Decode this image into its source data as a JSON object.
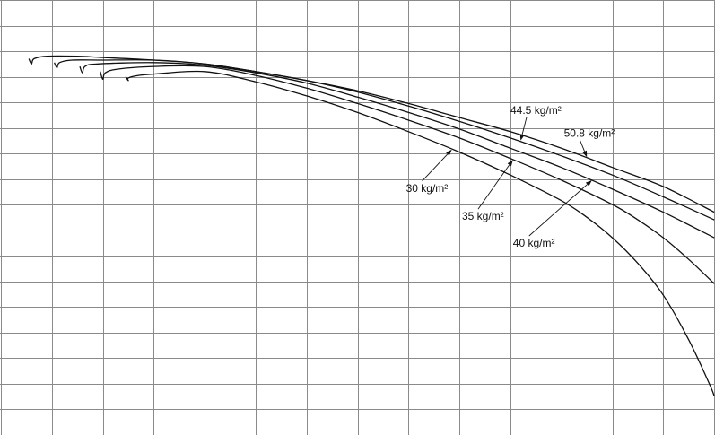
{
  "chart_data": {
    "type": "line",
    "title": "",
    "xlabel": "",
    "ylabel": "",
    "grid": true,
    "xlim": [
      0,
      14
    ],
    "ylim": [
      -17,
      0
    ],
    "grid_step": 1,
    "series": [
      {
        "name": "30 kg/m²",
        "color": "#111111",
        "points": [
          [
            2.45,
            -3.0
          ],
          [
            2.5,
            -3.15
          ],
          [
            2.5,
            -3.05
          ],
          [
            2.7,
            -2.95
          ],
          [
            3.0,
            -2.9
          ],
          [
            4.0,
            -2.8
          ],
          [
            5.0,
            -3.2
          ],
          [
            6.0,
            -3.75
          ],
          [
            7.0,
            -4.4
          ],
          [
            8.0,
            -5.15
          ],
          [
            9.0,
            -5.95
          ],
          [
            10.0,
            -6.85
          ],
          [
            11.0,
            -7.85
          ],
          [
            11.5,
            -8.5
          ],
          [
            12.0,
            -9.3
          ],
          [
            12.5,
            -10.3
          ],
          [
            13.0,
            -11.55
          ],
          [
            13.5,
            -13.3
          ],
          [
            13.9,
            -15.0
          ],
          [
            14.0,
            -15.5
          ]
        ]
      },
      {
        "name": "35 kg/m²",
        "color": "#111111",
        "points": [
          [
            1.95,
            -2.8
          ],
          [
            2.0,
            -3.1
          ],
          [
            2.05,
            -2.85
          ],
          [
            2.3,
            -2.7
          ],
          [
            3.0,
            -2.6
          ],
          [
            4.0,
            -2.6
          ],
          [
            5.0,
            -2.95
          ],
          [
            6.0,
            -3.45
          ],
          [
            7.0,
            -4.05
          ],
          [
            8.0,
            -4.7
          ],
          [
            9.0,
            -5.4
          ],
          [
            10.0,
            -6.2
          ],
          [
            11.0,
            -7.05
          ],
          [
            12.0,
            -8.0
          ],
          [
            12.5,
            -8.6
          ],
          [
            13.0,
            -9.3
          ],
          [
            13.5,
            -10.15
          ],
          [
            14.0,
            -11.1
          ]
        ]
      },
      {
        "name": "40 kg/m²",
        "color": "#111111",
        "points": [
          [
            1.55,
            -2.6
          ],
          [
            1.6,
            -2.85
          ],
          [
            1.65,
            -2.6
          ],
          [
            1.9,
            -2.5
          ],
          [
            3.0,
            -2.45
          ],
          [
            4.0,
            -2.55
          ],
          [
            5.0,
            -2.85
          ],
          [
            6.0,
            -3.25
          ],
          [
            7.0,
            -3.8
          ],
          [
            8.0,
            -4.4
          ],
          [
            9.0,
            -5.05
          ],
          [
            10.0,
            -5.8
          ],
          [
            11.0,
            -6.55
          ],
          [
            12.0,
            -7.4
          ],
          [
            13.0,
            -8.3
          ],
          [
            14.0,
            -9.3
          ]
        ]
      },
      {
        "name": "44.5 kg/m²",
        "color": "#111111",
        "points": [
          [
            1.05,
            -2.45
          ],
          [
            1.1,
            -2.65
          ],
          [
            1.15,
            -2.45
          ],
          [
            1.4,
            -2.35
          ],
          [
            2.0,
            -2.35
          ],
          [
            3.0,
            -2.35
          ],
          [
            4.0,
            -2.5
          ],
          [
            5.0,
            -2.8
          ],
          [
            6.0,
            -3.15
          ],
          [
            7.0,
            -3.6
          ],
          [
            8.0,
            -4.15
          ],
          [
            9.0,
            -4.75
          ],
          [
            10.0,
            -5.4
          ],
          [
            11.0,
            -6.1
          ],
          [
            12.0,
            -6.85
          ],
          [
            13.0,
            -7.7
          ],
          [
            14.0,
            -8.6
          ]
        ]
      },
      {
        "name": "50.8 kg/m²",
        "color": "#111111",
        "points": [
          [
            0.55,
            -2.3
          ],
          [
            0.6,
            -2.5
          ],
          [
            0.65,
            -2.3
          ],
          [
            0.9,
            -2.2
          ],
          [
            1.5,
            -2.2
          ],
          [
            2.0,
            -2.25
          ],
          [
            3.0,
            -2.35
          ],
          [
            4.0,
            -2.5
          ],
          [
            5.0,
            -2.8
          ],
          [
            6.0,
            -3.15
          ],
          [
            7.0,
            -3.55
          ],
          [
            8.0,
            -4.05
          ],
          [
            9.0,
            -4.6
          ],
          [
            10.0,
            -5.15
          ],
          [
            11.0,
            -5.8
          ],
          [
            12.0,
            -6.55
          ],
          [
            13.0,
            -7.3
          ],
          [
            14.0,
            -8.3
          ]
        ]
      }
    ],
    "annotations": [
      {
        "text": "30 kg/m²",
        "series": 0,
        "tip": [
          8.85,
          -5.85
        ],
        "label": [
          7.95,
          -7.5
        ]
      },
      {
        "text": "35 kg/m²",
        "series": 1,
        "tip": [
          10.05,
          -6.25
        ],
        "label": [
          9.05,
          -8.6
        ]
      },
      {
        "text": "40 kg/m²",
        "series": 2,
        "tip": [
          11.6,
          -7.05
        ],
        "label": [
          10.05,
          -9.65
        ]
      },
      {
        "text": "44.5 kg/m²",
        "series": 3,
        "tip": [
          10.2,
          -5.5
        ],
        "label": [
          10.0,
          -4.45
        ]
      },
      {
        "text": "50.8 kg/m²",
        "series": 4,
        "tip": [
          11.5,
          -6.15
        ],
        "label": [
          11.05,
          -5.35
        ]
      }
    ]
  }
}
